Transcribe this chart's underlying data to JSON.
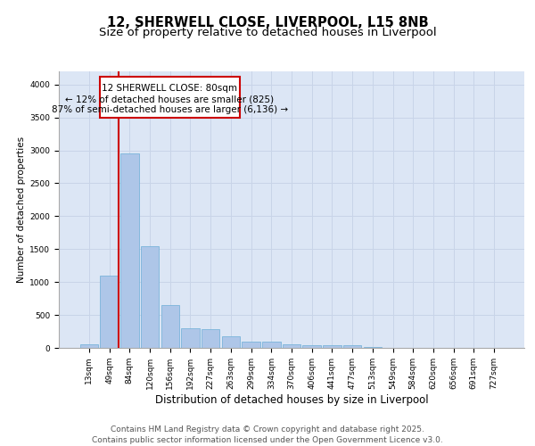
{
  "title_line1": "12, SHERWELL CLOSE, LIVERPOOL, L15 8NB",
  "title_line2": "Size of property relative to detached houses in Liverpool",
  "xlabel": "Distribution of detached houses by size in Liverpool",
  "ylabel": "Number of detached properties",
  "categories": [
    "13sqm",
    "49sqm",
    "84sqm",
    "120sqm",
    "156sqm",
    "192sqm",
    "227sqm",
    "263sqm",
    "299sqm",
    "334sqm",
    "370sqm",
    "406sqm",
    "441sqm",
    "477sqm",
    "513sqm",
    "549sqm",
    "584sqm",
    "620sqm",
    "656sqm",
    "691sqm",
    "727sqm"
  ],
  "values": [
    50,
    1100,
    2950,
    1540,
    650,
    295,
    285,
    175,
    100,
    90,
    60,
    40,
    35,
    40,
    20,
    5,
    3,
    2,
    1,
    1,
    1
  ],
  "bar_color": "#aec6e8",
  "bar_edge_color": "#6baed6",
  "vline_color": "#cc0000",
  "annotation_text_line1": "12 SHERWELL CLOSE: 80sqm",
  "annotation_text_line2": "← 12% of detached houses are smaller (825)",
  "annotation_text_line3": "87% of semi-detached houses are larger (6,136) →",
  "box_color": "#cc0000",
  "ylim": [
    0,
    4200
  ],
  "yticks": [
    0,
    500,
    1000,
    1500,
    2000,
    2500,
    3000,
    3500,
    4000
  ],
  "grid_color": "#c8d4e8",
  "background_color": "#dce6f5",
  "footer_line1": "Contains HM Land Registry data © Crown copyright and database right 2025.",
  "footer_line2": "Contains public sector information licensed under the Open Government Licence v3.0.",
  "title_fontsize": 10.5,
  "subtitle_fontsize": 9.5,
  "annotation_fontsize": 7.5,
  "footer_fontsize": 6.5,
  "ylabel_fontsize": 7.5,
  "xlabel_fontsize": 8.5,
  "tick_fontsize": 6.5
}
